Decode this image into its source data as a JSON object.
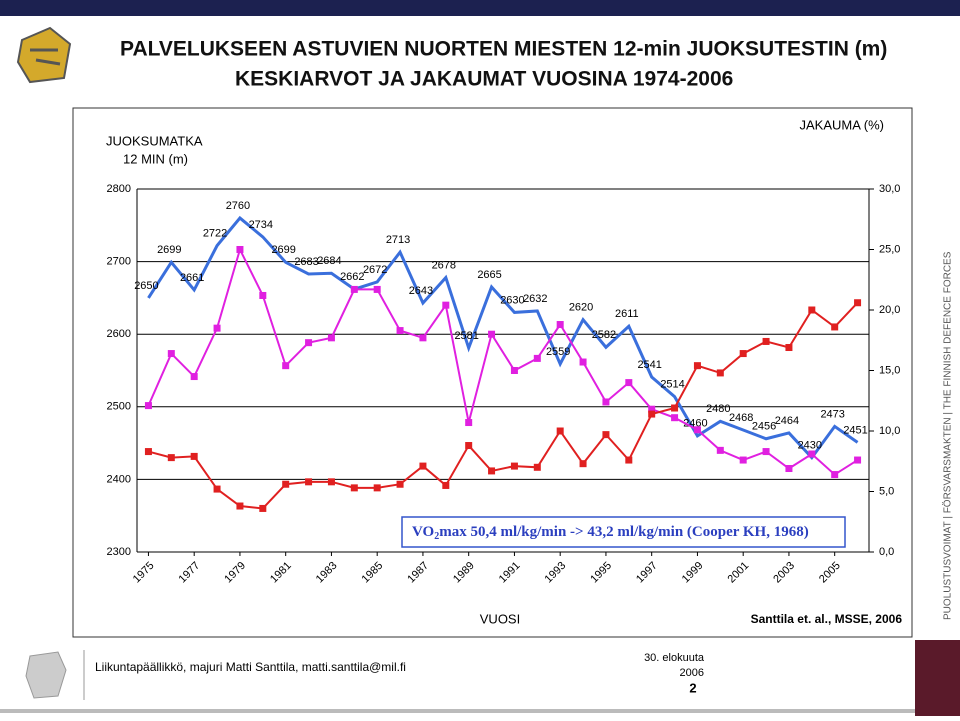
{
  "header": {
    "title_lines": [
      "PALVELUKSEEN ASTUVIEN NUORTEN MIESTEN 12-min JUOKSUTESTIN (m)",
      "KESKIARVOT JA JAKAUMAT VUOSINA 1974-2006"
    ]
  },
  "chart_data": {
    "type": "line",
    "y_label_lines": [
      "JUOKSUMATKA",
      "12 MIN (m)"
    ],
    "y2_label": "JAKAUMA (%)",
    "x_label": "VUOSI",
    "source": "Santtila et. al., MSSE, 2006",
    "annotation": [
      "VO",
      "2",
      "max 50,4 ml/kg/min -> 43,2 ml/kg/min (Cooper KH, 1968)"
    ],
    "x": [
      1975,
      1976,
      1977,
      1978,
      1979,
      1980,
      1981,
      1982,
      1983,
      1984,
      1985,
      1986,
      1987,
      1988,
      1989,
      1990,
      1991,
      1992,
      1993,
      1994,
      1995,
      1996,
      1997,
      1998,
      1999,
      2000,
      2001,
      2002,
      2003,
      2004,
      2005,
      2006
    ],
    "xlim": [
      1974.5,
      2006.5
    ],
    "xticks": [
      1975,
      1977,
      1979,
      1981,
      1983,
      1985,
      1987,
      1989,
      1991,
      1993,
      1995,
      1997,
      1999,
      2001,
      2003,
      2005
    ],
    "ylim": [
      2300,
      2800
    ],
    "yticks": [
      2300,
      2400,
      2500,
      2600,
      2700,
      2800
    ],
    "y2lim": [
      0,
      30
    ],
    "y2ticks": [
      {
        "value": 0,
        "label": "0,0"
      },
      {
        "value": 5,
        "label": "5,0"
      },
      {
        "value": 10,
        "label": "10,0"
      },
      {
        "value": 15,
        "label": "15,0"
      },
      {
        "value": 20,
        "label": "20,0"
      },
      {
        "value": 25,
        "label": "25,0"
      },
      {
        "value": 30,
        "label": "30,0"
      }
    ],
    "grid": true,
    "series": [
      {
        "color": "#3a6fdc",
        "values": [
          2650,
          2699,
          2661,
          2722,
          2760,
          2734,
          2699,
          2683,
          2684,
          2662,
          2672,
          2713,
          2643,
          2678,
          2581,
          2665,
          2630,
          2632,
          2559,
          2620,
          2582,
          2611,
          2541,
          2514,
          2460,
          2480,
          2468,
          2456,
          2464,
          2430,
          2473,
          2451
        ]
      },
      {
        "color": "#e020e0",
        "axis": "y2",
        "values": [
          12.1,
          16.4,
          14.5,
          18.5,
          25.0,
          21.2,
          15.4,
          17.3,
          17.7,
          21.7,
          21.7,
          18.3,
          17.7,
          20.4,
          10.7,
          18.0,
          15.0,
          16.0,
          18.8,
          15.7,
          12.4,
          14.0,
          11.8,
          11.1,
          10.1,
          8.4,
          7.6,
          8.3,
          6.9,
          8.1,
          6.4,
          7.6
        ]
      },
      {
        "color": "#e02020",
        "axis": "y2",
        "values": [
          8.3,
          7.8,
          7.9,
          5.2,
          3.8,
          3.6,
          5.6,
          5.8,
          5.8,
          5.3,
          5.3,
          5.6,
          7.1,
          5.5,
          8.8,
          6.7,
          7.1,
          7.0,
          10.0,
          7.3,
          9.7,
          7.6,
          11.4,
          11.9,
          15.4,
          14.8,
          16.4,
          17.4,
          16.9,
          20.0,
          18.6,
          20.6
        ]
      }
    ]
  },
  "footer": {
    "author": "Liikuntapäällikkö, majuri Matti Santtila, matti.santtila@mil.fi",
    "date_lines": [
      "30. elokuuta",
      "2006"
    ],
    "page": "2"
  },
  "side_text": "PUOLUSTUSVOIMAT  |  FÖRSVARSMAKTEN  |  THE FINNISH DEFENCE FORCES"
}
